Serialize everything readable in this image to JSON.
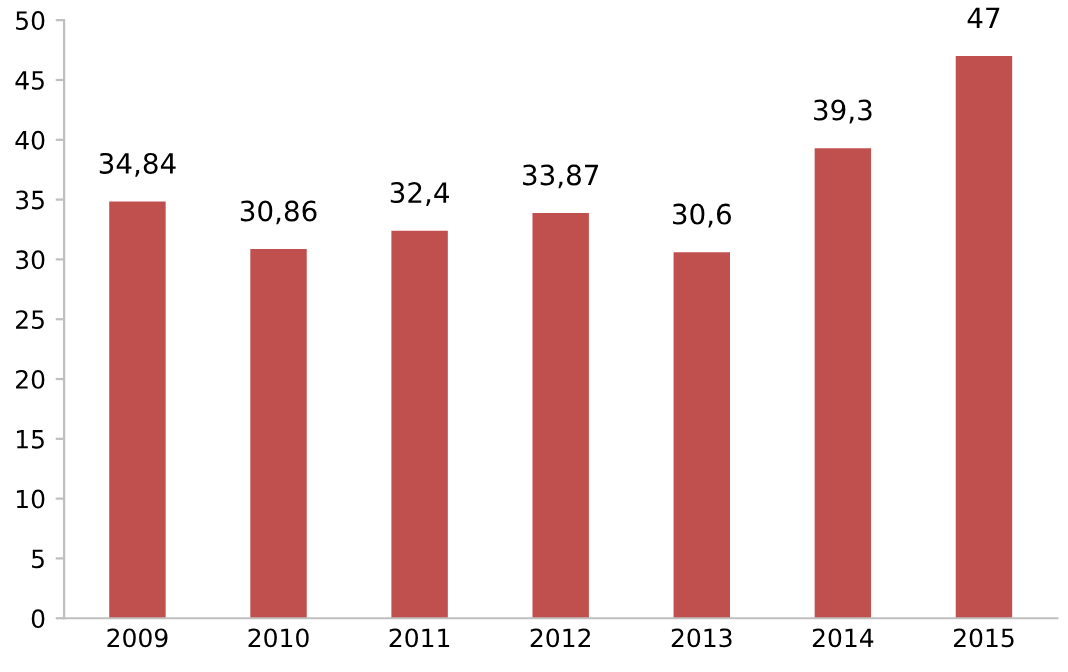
{
  "chart_data": {
    "type": "bar",
    "categories": [
      "2009",
      "2010",
      "2011",
      "2012",
      "2013",
      "2014",
      "2015"
    ],
    "values": [
      34.84,
      30.86,
      32.4,
      33.87,
      30.6,
      39.3,
      47
    ],
    "value_labels": [
      "34,84",
      "30,86",
      "32,4",
      "33,87",
      "30,6",
      "39,3",
      "47"
    ],
    "color": "#c0504d",
    "ylim": [
      0,
      50
    ],
    "yticks": [
      0,
      5,
      10,
      15,
      20,
      25,
      30,
      35,
      40,
      45,
      50
    ],
    "grid": false,
    "legend": false
  }
}
